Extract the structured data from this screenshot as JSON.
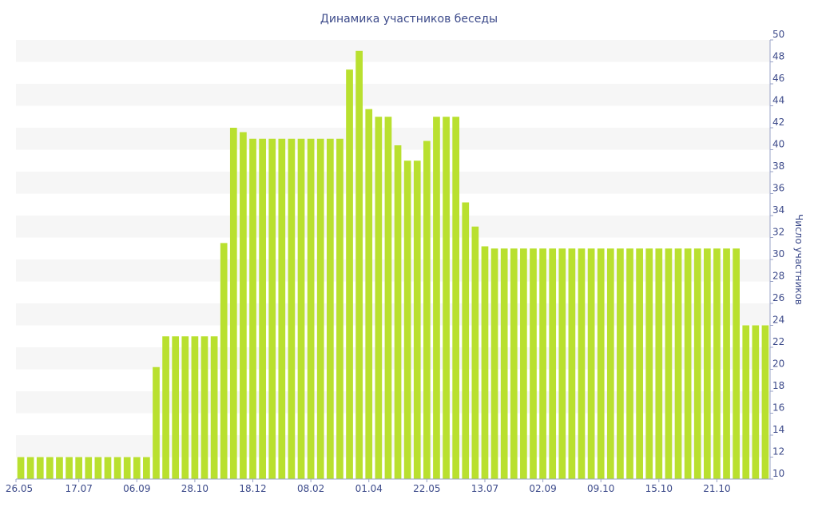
{
  "chart_data": {
    "type": "bar",
    "title": "Динамика участников беседы",
    "xlabel": "",
    "ylabel": "Число участников",
    "ylim": [
      10,
      50
    ],
    "y_ticks": [
      10,
      12,
      14,
      16,
      18,
      20,
      22,
      24,
      26,
      28,
      30,
      32,
      34,
      36,
      38,
      40,
      42,
      44,
      46,
      48,
      50
    ],
    "x_tick_labels": [
      {
        "index": 0,
        "label": "26.05"
      },
      {
        "index": 6.5,
        "label": "17.07"
      },
      {
        "index": 12.5,
        "label": "06.09"
      },
      {
        "index": 18.5,
        "label": "28.10"
      },
      {
        "index": 24.5,
        "label": "18.12"
      },
      {
        "index": 30.5,
        "label": "08.02"
      },
      {
        "index": 36.5,
        "label": "01.04"
      },
      {
        "index": 42.5,
        "label": "22.05"
      },
      {
        "index": 48.5,
        "label": "13.07"
      },
      {
        "index": 54.5,
        "label": "02.09"
      },
      {
        "index": 60.5,
        "label": "09.10"
      },
      {
        "index": 66.5,
        "label": "15.10"
      },
      {
        "index": 72.5,
        "label": "21.10"
      }
    ],
    "axis_position": "right",
    "grid": "alternating horizontal bands",
    "colors": {
      "bar": "#b9e02f",
      "band": "#f6f6f6",
      "text": "#3c4a8a",
      "axis": "#9aa3c7"
    },
    "values": [
      12,
      12,
      12,
      12,
      12,
      12,
      12,
      12,
      12,
      12,
      12,
      12,
      12,
      12,
      20.2,
      23,
      23,
      23,
      23,
      23,
      23,
      31.5,
      42,
      41.6,
      41,
      41,
      41,
      41,
      41,
      41,
      41,
      41,
      41,
      41,
      47.3,
      49,
      43.7,
      43,
      43,
      40.4,
      39,
      39,
      40.8,
      43,
      43,
      43,
      35.2,
      33,
      31.2,
      31,
      31,
      31,
      31,
      31,
      31,
      31,
      31,
      31,
      31,
      31,
      31,
      31,
      31,
      31,
      31,
      31,
      31,
      31,
      31,
      31,
      31,
      31,
      31,
      31,
      31,
      24,
      24,
      24
    ]
  }
}
